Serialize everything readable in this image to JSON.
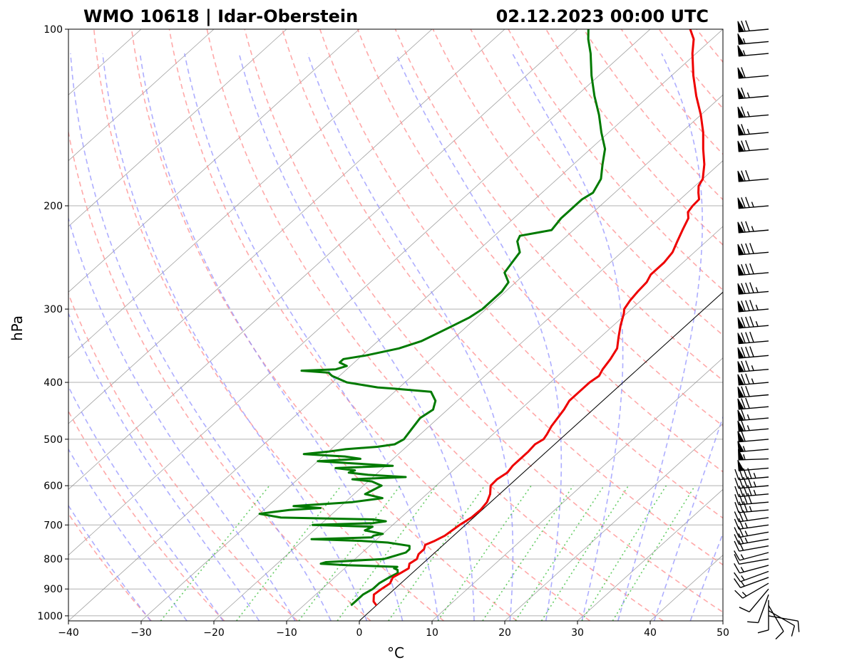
{
  "chart_data": {
    "type": "skew-t",
    "title_left": "WMO 10618 | Idar-Oberstein",
    "title_right": "02.12.2023 00:00 UTC",
    "xlabel": "°C",
    "ylabel": "hPa",
    "xlim": [
      -40,
      50
    ],
    "ylim": [
      1020,
      100
    ],
    "x_ticks": [
      -40,
      -30,
      -20,
      -10,
      0,
      10,
      20,
      30,
      40,
      50
    ],
    "x_tick_labels": [
      "−40",
      "−30",
      "−20",
      "−10",
      "0",
      "10",
      "20",
      "30",
      "40",
      "50"
    ],
    "y_ticks": [
      100,
      200,
      300,
      400,
      500,
      600,
      700,
      800,
      900,
      1000
    ],
    "y_tick_labels": [
      "100",
      "200",
      "300",
      "400",
      "500",
      "600",
      "700",
      "800",
      "900",
      "1000"
    ],
    "colors": {
      "temperature": "#ee0000",
      "dewpoint": "#007a00",
      "dry_adiabats": "#ff8c8c",
      "moist_adiabats": "#8c8cff",
      "mixing_ratio": "#33bb33",
      "isotherms": "#888888",
      "grid": "#b0b0b0"
    },
    "temperature": {
      "name": "Temperature",
      "p": [
        960,
        945,
        920,
        900,
        880,
        860,
        845,
        830,
        815,
        800,
        785,
        770,
        757,
        745,
        730,
        715,
        700,
        680,
        660,
        640,
        620,
        600,
        585,
        570,
        555,
        540,
        525,
        510,
        500,
        490,
        475,
        460,
        445,
        430,
        415,
        400,
        390,
        380,
        365,
        350,
        335,
        320,
        305,
        300,
        290,
        280,
        270,
        262,
        250,
        240,
        230,
        220,
        210,
        205,
        200,
        195,
        190,
        185,
        180,
        170,
        160,
        150,
        140,
        130,
        120,
        110,
        104,
        100
      ],
      "t": [
        0.0,
        -1.0,
        -2.0,
        -1.8,
        -1.5,
        -2.0,
        -1.6,
        -1.2,
        -1.8,
        -1.5,
        -2.0,
        -2.0,
        -2.5,
        -1.8,
        -1.2,
        -1.0,
        -0.8,
        -0.3,
        -0.2,
        -0.5,
        -1.3,
        -2.5,
        -2.6,
        -2.2,
        -2.5,
        -2.5,
        -2.5,
        -2.7,
        -2.3,
        -2.6,
        -3.2,
        -3.6,
        -4.0,
        -4.6,
        -4.6,
        -4.6,
        -4.3,
        -4.8,
        -5.3,
        -6.0,
        -7.5,
        -9.0,
        -10.4,
        -11.0,
        -11.5,
        -11.8,
        -12.0,
        -12.6,
        -12.6,
        -13.0,
        -14.0,
        -15.0,
        -16.0,
        -17.0,
        -17.3,
        -17.4,
        -18.5,
        -19.5,
        -20.0,
        -22.0,
        -24.5,
        -27.0,
        -30.0,
        -33.5,
        -37.0,
        -40.5,
        -42.5,
        -44.5
      ]
    },
    "dewpoint": {
      "name": "Dew point",
      "p": [
        960,
        945,
        920,
        900,
        880,
        860,
        845,
        835,
        830,
        825,
        820,
        815,
        810,
        800,
        790,
        780,
        770,
        760,
        750,
        745,
        740,
        735,
        730,
        725,
        720,
        715,
        705,
        700,
        695,
        690,
        685,
        680,
        670,
        660,
        655,
        650,
        640,
        630,
        620,
        610,
        600,
        590,
        585,
        580,
        575,
        570,
        565,
        560,
        555,
        550,
        545,
        540,
        535,
        530,
        525,
        520,
        515,
        510,
        500,
        480,
        460,
        445,
        430,
        415,
        410,
        408,
        400,
        390,
        385,
        382,
        380,
        375,
        370,
        365,
        360,
        350,
        340,
        330,
        320,
        310,
        300,
        290,
        280,
        270,
        260,
        250,
        240,
        230,
        225,
        220,
        210,
        205,
        200,
        195,
        190,
        180,
        170,
        160,
        150,
        140,
        130,
        120,
        110,
        104,
        100
      ],
      "td": [
        -3.5,
        -3.5,
        -3.5,
        -3.0,
        -3.0,
        -2.5,
        -2.0,
        -2.5,
        -3.2,
        -3.0,
        -10.0,
        -14.0,
        -13.5,
        -6.0,
        -5.0,
        -4.0,
        -4.0,
        -4.5,
        -8.0,
        -12.0,
        -19.0,
        -11.0,
        -11.0,
        -10.0,
        -11.5,
        -13.0,
        -12.5,
        -21.0,
        -13.0,
        -11.5,
        -13.5,
        -26.5,
        -30.0,
        -26.5,
        -22.5,
        -26.5,
        -19.0,
        -15.5,
        -18.5,
        -18.0,
        -17.5,
        -19.5,
        -22.5,
        -15.5,
        -21.0,
        -24.0,
        -23.5,
        -26.5,
        -19.0,
        -24.5,
        -30.0,
        -24.5,
        -27.0,
        -33.0,
        -30.0,
        -28.0,
        -24.0,
        -22.0,
        -21.5,
        -22.0,
        -22.5,
        -22.0,
        -23.0,
        -25.0,
        -30.5,
        -33.0,
        -38.0,
        -41.0,
        -42.0,
        -46.0,
        -41.5,
        -40.5,
        -42.0,
        -42.0,
        -39.5,
        -36.0,
        -34.0,
        -33.0,
        -32.0,
        -31.0,
        -30.5,
        -30.5,
        -30.5,
        -31.0,
        -33.0,
        -33.5,
        -34.0,
        -36.0,
        -36.5,
        -33.0,
        -33.5,
        -33.5,
        -33.5,
        -33.5,
        -33.0,
        -34.0,
        -36.0,
        -38.0,
        -41.0,
        -44.0,
        -47.5,
        -51.0,
        -54.5,
        -57.0,
        -58.5
      ]
    },
    "wind_barbs": {
      "p": [
        1000,
        980,
        960,
        940,
        920,
        900,
        880,
        860,
        840,
        820,
        800,
        780,
        760,
        740,
        720,
        700,
        680,
        660,
        640,
        620,
        600,
        580,
        560,
        540,
        520,
        500,
        480,
        460,
        440,
        420,
        400,
        380,
        360,
        340,
        320,
        300,
        280,
        260,
        240,
        220,
        200,
        180,
        160,
        150,
        140,
        130,
        120,
        110,
        105,
        100
      ],
      "speed_kt": [
        10,
        10,
        10,
        10,
        10,
        10,
        15,
        15,
        15,
        15,
        10,
        15,
        20,
        25,
        25,
        25,
        30,
        35,
        40,
        45,
        45,
        45,
        50,
        55,
        55,
        60,
        65,
        65,
        70,
        70,
        75,
        75,
        80,
        80,
        85,
        85,
        85,
        80,
        80,
        75,
        75,
        70,
        70,
        65,
        65,
        65,
        60,
        55,
        55,
        70
      ],
      "direction_deg": [
        100,
        120,
        150,
        180,
        200,
        220,
        240,
        250,
        250,
        255,
        260,
        255,
        260,
        260,
        260,
        262,
        262,
        265,
        265,
        265,
        265,
        265,
        265,
        268,
        265,
        265,
        265,
        265,
        265,
        265,
        265,
        265,
        265,
        265,
        265,
        265,
        265,
        265,
        265,
        265,
        265,
        265,
        265,
        265,
        265,
        265,
        265,
        265,
        265,
        265
      ]
    }
  }
}
